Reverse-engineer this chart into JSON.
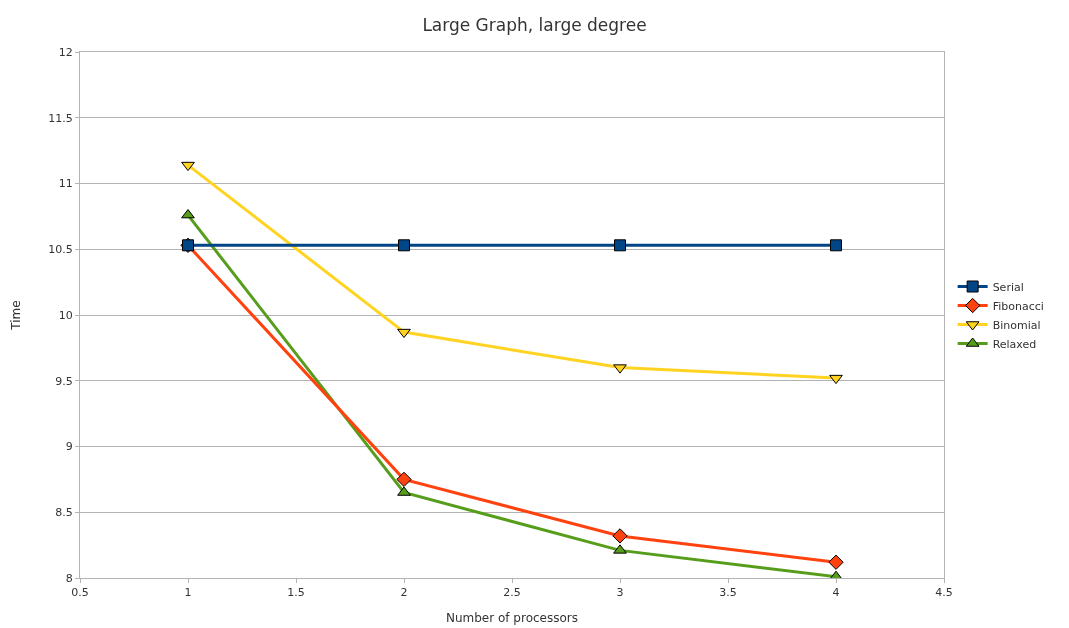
{
  "chart_data": {
    "type": "line",
    "title": "Large Graph, large degree",
    "xlabel": "Number of processors",
    "ylabel": "Time",
    "x": [
      1,
      2,
      3,
      4
    ],
    "series": [
      {
        "name": "Serial",
        "color": "#004586",
        "marker": "square",
        "values": [
          10.53,
          10.53,
          10.53,
          10.53
        ]
      },
      {
        "name": "Fibonacci",
        "color": "#ff420e",
        "marker": "diamond",
        "values": [
          10.53,
          8.75,
          8.32,
          8.12
        ]
      },
      {
        "name": "Binomial",
        "color": "#ffd320",
        "marker": "triangle-down",
        "values": [
          11.14,
          9.87,
          9.6,
          9.52
        ]
      },
      {
        "name": "Relaxed",
        "color": "#579d1c",
        "marker": "triangle",
        "values": [
          10.76,
          8.65,
          8.21,
          8.01
        ]
      }
    ],
    "xlim": [
      0.5,
      4.5
    ],
    "xticks": [
      0.5,
      1,
      1.5,
      2,
      2.5,
      3,
      3.5,
      4,
      4.5
    ],
    "ylim": [
      8,
      12
    ],
    "yticks": [
      8,
      8.5,
      9,
      9.5,
      10,
      10.5,
      11,
      11.5,
      12
    ],
    "grid": "y",
    "legend": "right",
    "line_style": "solid"
  }
}
